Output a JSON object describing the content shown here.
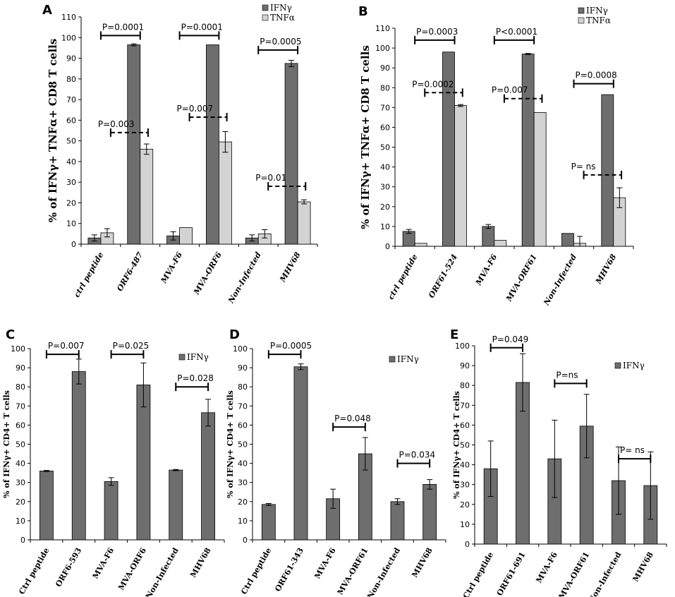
{
  "colors": {
    "ifn": "#6e6e6e",
    "tnf": "#d3d3d3",
    "axis": "#000000",
    "bracket": "#000000"
  },
  "chart_data": [
    {
      "panel": "A",
      "type": "bar",
      "ylabel": "% of IFNγ+ TNFα+ CD8 T cells",
      "ylim": [
        0,
        110
      ],
      "ytick_step": 10,
      "categories": [
        "ctrl peptide",
        "ORF6-487",
        "MVA-F6",
        "MVA-ORF6",
        "Non-Infected",
        "MHV68"
      ],
      "category_style": "italic",
      "series": [
        {
          "name": "IFNγ",
          "values": [
            3,
            96.5,
            4,
            96.5,
            3,
            87.5
          ],
          "errors": [
            1.5,
            0.5,
            2,
            0,
            1.5,
            1.5
          ]
        },
        {
          "name": "TNFα",
          "values": [
            5.5,
            46,
            8,
            49.5,
            5,
            20.5
          ],
          "errors": [
            2,
            2.5,
            0,
            5,
            2,
            1
          ]
        }
      ],
      "legend": [
        "IFNγ",
        "TNFα"
      ],
      "annotations": [
        {
          "text": "P=0.0001",
          "from": 0,
          "to": 1,
          "y": 101,
          "style": "solid"
        },
        {
          "text": "P=0.003",
          "from": 0.25,
          "to": 1.2,
          "y": 54,
          "style": "dashed"
        },
        {
          "text": "P=0.0001",
          "from": 2,
          "to": 3,
          "y": 101,
          "style": "solid"
        },
        {
          "text": "P=0.007",
          "from": 2.25,
          "to": 3.2,
          "y": 61.5,
          "style": "dashed"
        },
        {
          "text": "P=0.0005",
          "from": 4,
          "to": 5,
          "y": 94,
          "style": "solid"
        },
        {
          "text": "P=0.01",
          "from": 4.25,
          "to": 5.2,
          "y": 28,
          "style": "dashed"
        }
      ]
    },
    {
      "panel": "B",
      "type": "bar",
      "ylabel": "% of IFNγ+ TNFα+ CD8 T cells",
      "ylim": [
        0,
        110
      ],
      "ytick_step": 10,
      "categories": [
        "ctrl peptide",
        "ORF61-524",
        "MVA-F6",
        "MVA-ORF61",
        "Non-Infected",
        "MHV68"
      ],
      "category_style": "italic",
      "series": [
        {
          "name": "IFNγ",
          "values": [
            7.5,
            98,
            10,
            97,
            6.5,
            76.5
          ],
          "errors": [
            1,
            0,
            1,
            0.3,
            0,
            0
          ]
        },
        {
          "name": "TNFα",
          "values": [
            1.5,
            71,
            3,
            67.5,
            1.5,
            24.5
          ],
          "errors": [
            0,
            0.5,
            0,
            0,
            3.5,
            5
          ]
        }
      ],
      "legend": [
        "IFNγ",
        "TNFα"
      ],
      "annotations": [
        {
          "text": "P=0.0003",
          "from": 0,
          "to": 1,
          "y": 104,
          "style": "solid"
        },
        {
          "text": "P=0.0002",
          "from": 0.25,
          "to": 1.2,
          "y": 77.5,
          "style": "dashed"
        },
        {
          "text": "P<0.0001",
          "from": 2,
          "to": 3,
          "y": 104,
          "style": "solid"
        },
        {
          "text": "P=0.007",
          "from": 2.25,
          "to": 3.2,
          "y": 74.5,
          "style": "dashed"
        },
        {
          "text": "P=0.0008",
          "from": 4,
          "to": 5,
          "y": 82,
          "style": "solid"
        },
        {
          "text": "P= ns",
          "from": 4.25,
          "to": 5.2,
          "y": 36,
          "style": "dashed"
        }
      ]
    },
    {
      "panel": "C",
      "type": "bar",
      "ylabel": "% of IFNγ+ CD4+ T cells",
      "ylim": [
        0,
        100
      ],
      "ytick_step": 10,
      "categories": [
        "Ctrl peptide",
        "ORF6-593",
        "MVA-F6",
        "MVA-ORF6",
        "Non-Infected",
        "MHV68"
      ],
      "category_style": "normal",
      "series": [
        {
          "name": "IFNγ",
          "values": [
            36,
            88,
            30.5,
            81,
            36.5,
            66.5
          ],
          "errors": [
            0.3,
            6.5,
            2,
            11.5,
            0.3,
            7
          ]
        }
      ],
      "legend": [
        "IFNγ"
      ],
      "annotations": [
        {
          "text": "P=0.007",
          "from": 0,
          "to": 1,
          "y": 97,
          "style": "solid"
        },
        {
          "text": "P=0.025",
          "from": 2,
          "to": 3,
          "y": 97,
          "style": "solid"
        },
        {
          "text": "P=0.028",
          "from": 4,
          "to": 5,
          "y": 80,
          "style": "solid"
        }
      ]
    },
    {
      "panel": "D",
      "type": "bar",
      "ylabel": "% of IFNγ+ CD4+ T cells",
      "ylim": [
        0,
        100
      ],
      "ytick_step": 10,
      "categories": [
        "Ctrl peptide",
        "ORF61-343",
        "MVA-F6",
        "MVA-ORF61",
        "Non-Infected",
        "MHV68"
      ],
      "category_style": "normal",
      "series": [
        {
          "name": "IFNγ",
          "values": [
            18.5,
            90.5,
            21.5,
            45,
            20,
            29
          ],
          "errors": [
            0.5,
            1.5,
            5,
            8.5,
            1.5,
            2.5
          ]
        }
      ],
      "legend": [
        "IFNγ"
      ],
      "annotations": [
        {
          "text": "P=0.0005",
          "from": 0,
          "to": 1,
          "y": 97,
          "style": "solid"
        },
        {
          "text": "P=0.048",
          "from": 2,
          "to": 3,
          "y": 59,
          "style": "solid"
        },
        {
          "text": "P=0.034",
          "from": 4,
          "to": 5,
          "y": 40,
          "style": "solid"
        }
      ]
    },
    {
      "panel": "E",
      "type": "bar",
      "ylabel": "% of IFNγ+ CD4+ T cells",
      "ylim": [
        0,
        100
      ],
      "ytick_step": 10,
      "categories": [
        "Ctrl peptide",
        "ORF61-691",
        "MVA-F6",
        "MVA-ORF61",
        "Non-Infected",
        "MHV68"
      ],
      "category_style": "normal",
      "series": [
        {
          "name": "IFNγ",
          "values": [
            38,
            81.5,
            43,
            59.5,
            32,
            29.5
          ],
          "errors": [
            14,
            14.5,
            19.5,
            16,
            17,
            17
          ]
        }
      ],
      "legend": [
        "IFNγ"
      ],
      "annotations": [
        {
          "text": "P=0.049",
          "from": 0,
          "to": 1,
          "y": 99,
          "style": "solid"
        },
        {
          "text": "P=ns",
          "from": 2,
          "to": 3,
          "y": 81,
          "style": "solid"
        },
        {
          "text": "P= ns",
          "from": 4,
          "to": 5,
          "y": 43,
          "style": "solid"
        }
      ]
    }
  ]
}
